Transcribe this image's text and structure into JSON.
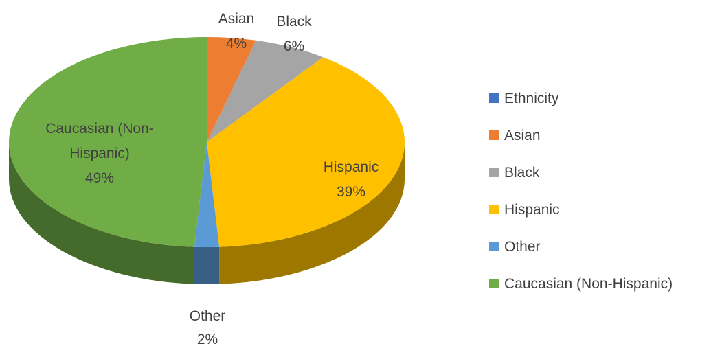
{
  "chart_data": {
    "type": "pie",
    "title": "",
    "categories": [
      "Ethnicity",
      "Asian",
      "Black",
      "Hispanic",
      "Other",
      "Caucasian (Non-Hispanic)"
    ],
    "values": [
      0,
      4,
      6,
      39,
      2,
      49
    ],
    "labels": [
      {
        "name": "Asian",
        "pct": "4%"
      },
      {
        "name": "Black",
        "pct": "6%"
      },
      {
        "name": "Hispanic",
        "pct": "39%"
      },
      {
        "name": "Other",
        "pct": "2%"
      },
      {
        "name_lines": [
          "Caucasian (Non-",
          "Hispanic)"
        ],
        "pct": "49%"
      }
    ],
    "legend": {
      "position": "right",
      "items": [
        {
          "label": "Ethnicity",
          "color": "#4472C4"
        },
        {
          "label": "Asian",
          "color": "#ED7D31"
        },
        {
          "label": "Black",
          "color": "#A5A5A5"
        },
        {
          "label": "Hispanic",
          "color": "#FFC000"
        },
        {
          "label": "Other",
          "color": "#5B9BD5"
        },
        {
          "label": "Caucasian (Non-Hispanic)",
          "color": "#70AD47"
        }
      ]
    }
  }
}
